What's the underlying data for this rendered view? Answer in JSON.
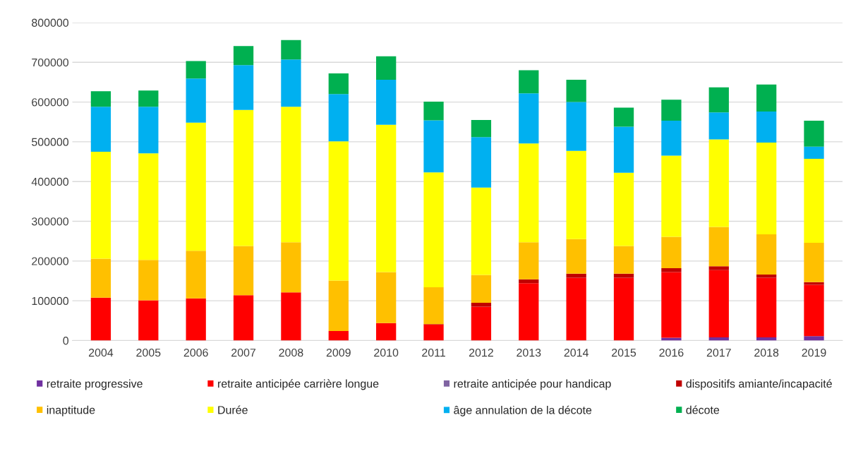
{
  "chart_data": {
    "type": "bar",
    "stacked": true,
    "categories": [
      "2004",
      "2005",
      "2006",
      "2007",
      "2008",
      "2009",
      "2010",
      "2011",
      "2012",
      "2013",
      "2014",
      "2015",
      "2016",
      "2017",
      "2018",
      "2019"
    ],
    "series": [
      {
        "name": "retraite progressive",
        "color": "#7030a0",
        "values": [
          0,
          0,
          0,
          0,
          0,
          0,
          0,
          0,
          0,
          0,
          0,
          0,
          7000,
          8000,
          8000,
          11000
        ]
      },
      {
        "name": "retraite anticipée carrière longue",
        "color": "#ff0000",
        "values": [
          108000,
          101000,
          106000,
          114000,
          121000,
          24000,
          44000,
          40000,
          85000,
          144000,
          158000,
          158000,
          165000,
          169000,
          150000,
          129000
        ]
      },
      {
        "name": "retraite anticipée pour handicap",
        "color": "#8064a2",
        "values": [
          null,
          null,
          null,
          null,
          null,
          null,
          null,
          null,
          null,
          null,
          null,
          null,
          null,
          null,
          null,
          null
        ]
      },
      {
        "name": "dispositifs amiante/incapacité",
        "color": "#c00000",
        "values": [
          0,
          0,
          0,
          0,
          0,
          0,
          0,
          1000,
          10000,
          10000,
          10000,
          10000,
          10000,
          10000,
          8000,
          7000
        ]
      },
      {
        "name": "inaptitude",
        "color": "#ffc000",
        "values": [
          98000,
          102000,
          120000,
          124000,
          126000,
          127000,
          128000,
          93000,
          70000,
          93000,
          87000,
          70000,
          79000,
          99000,
          101000,
          99000
        ]
      },
      {
        "name": "Durée",
        "color": "#ffff00",
        "values": [
          269000,
          268000,
          322000,
          342000,
          341000,
          350000,
          371000,
          289000,
          220000,
          249000,
          222000,
          184000,
          204000,
          220000,
          231000,
          211000
        ]
      },
      {
        "name": "âge annulation de la décote",
        "color": "#00b0f0",
        "values": [
          113000,
          117000,
          111000,
          113000,
          119000,
          119000,
          113000,
          131000,
          127000,
          126000,
          123000,
          116000,
          88000,
          68000,
          78000,
          31000
        ]
      },
      {
        "name": "décote",
        "color": "#00b050",
        "values": [
          39000,
          41000,
          44000,
          48000,
          49000,
          52000,
          59000,
          47000,
          43000,
          58000,
          56000,
          48000,
          53000,
          63000,
          68000,
          65000
        ]
      }
    ],
    "ylim": [
      0,
      800000
    ],
    "yticks": [
      0,
      100000,
      200000,
      300000,
      400000,
      500000,
      600000,
      700000,
      800000
    ],
    "grid": "y",
    "legend": "bottom"
  }
}
